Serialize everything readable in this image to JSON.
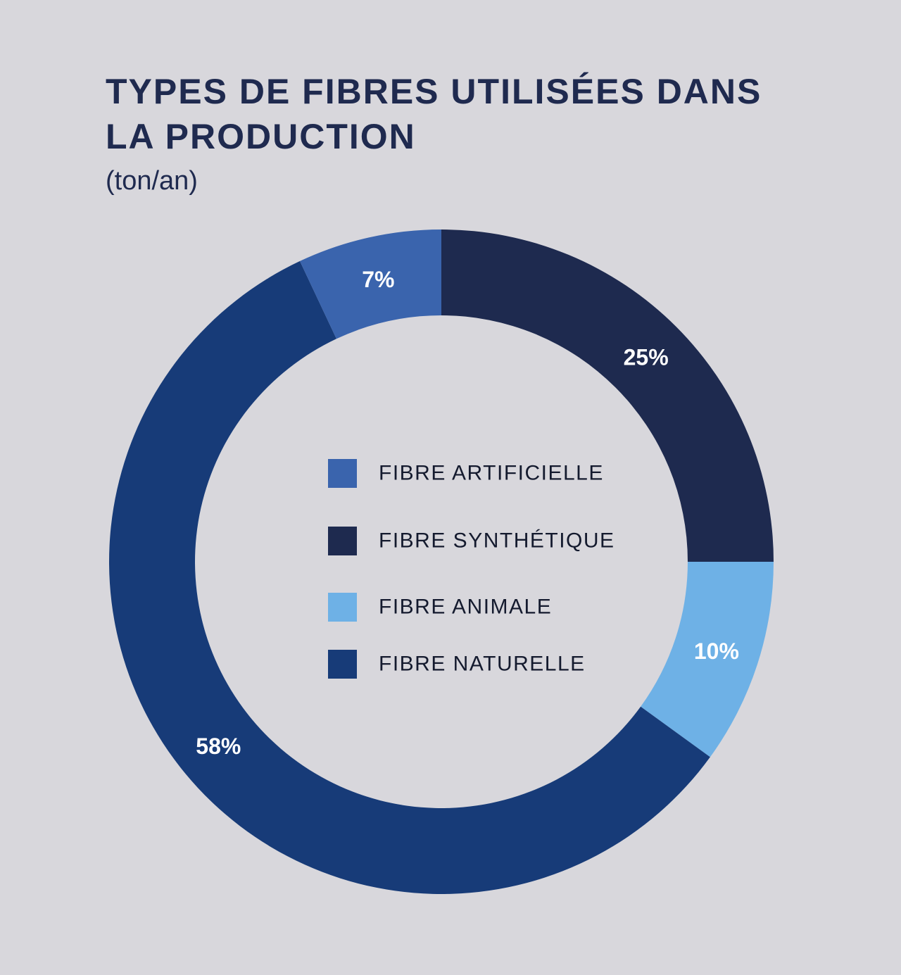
{
  "chart_data": {
    "type": "pie",
    "title": "TYPES DE FIBRES UTILISÉES DANS LA PRODUCTION",
    "subtitle": "(ton/an)",
    "legend_position": "center",
    "series": [
      {
        "name": "FIBRE ARTIFICIELLE",
        "value": 7,
        "label": "7%",
        "color": "#3a64ad"
      },
      {
        "name": "FIBRE SYNTHÉTIQUE",
        "value": 25,
        "label": "25%",
        "color": "#1e2a4f"
      },
      {
        "name": "FIBRE ANIMALE",
        "value": 10,
        "label": "10%",
        "color": "#6eb1e6"
      },
      {
        "name": "FIBRE NATURELLE",
        "value": 58,
        "label": "58%",
        "color": "#173b78"
      }
    ],
    "slice_order": [
      "FIBRE SYNTHÉTIQUE",
      "FIBRE ANIMALE",
      "FIBRE NATURELLE",
      "FIBRE ARTIFICIELLE"
    ]
  }
}
